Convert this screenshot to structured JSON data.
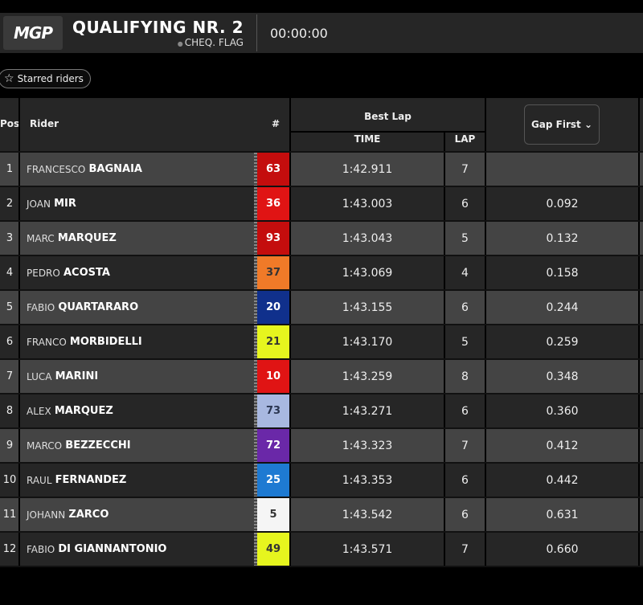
{
  "header": {
    "logo": "MGP",
    "title": "QUALIFYING NR. 2",
    "status": "CHEQ. FLAG",
    "clock": "00:00:00"
  },
  "filter": {
    "starred_label": "Starred riders",
    "icon": "star-outline-icon"
  },
  "columns": {
    "pos": "Pos",
    "rider": "Rider",
    "number": "#",
    "best_lap": "Best Lap",
    "time": "TIME",
    "lap": "LAP",
    "gap": "Gap First"
  },
  "rows": [
    {
      "pos": "1",
      "first": "FRANCESCO",
      "last": "BAGNAIA",
      "number": "63",
      "color": "#c40d0d",
      "text_color": "#ffffff",
      "time": "1:42.911",
      "lap": "7",
      "gap": ""
    },
    {
      "pos": "2",
      "first": "JOAN",
      "last": "MIR",
      "number": "36",
      "color": "#e01414",
      "text_color": "#ffffff",
      "time": "1:43.003",
      "lap": "6",
      "gap": "0.092"
    },
    {
      "pos": "3",
      "first": "MARC",
      "last": "MARQUEZ",
      "number": "93",
      "color": "#c40d0d",
      "text_color": "#ffffff",
      "time": "1:43.043",
      "lap": "5",
      "gap": "0.132"
    },
    {
      "pos": "4",
      "first": "PEDRO",
      "last": "ACOSTA",
      "number": "37",
      "color": "#f07a28",
      "text_color": "#333333",
      "time": "1:43.069",
      "lap": "4",
      "gap": "0.158"
    },
    {
      "pos": "5",
      "first": "FABIO",
      "last": "QUARTARARO",
      "number": "20",
      "color": "#10308c",
      "text_color": "#ffffff",
      "time": "1:43.155",
      "lap": "6",
      "gap": "0.244"
    },
    {
      "pos": "6",
      "first": "FRANCO",
      "last": "MORBIDELLI",
      "number": "21",
      "color": "#e6f51e",
      "text_color": "#333333",
      "time": "1:43.170",
      "lap": "5",
      "gap": "0.259"
    },
    {
      "pos": "7",
      "first": "LUCA",
      "last": "MARINI",
      "number": "10",
      "color": "#e01414",
      "text_color": "#ffffff",
      "time": "1:43.259",
      "lap": "8",
      "gap": "0.348"
    },
    {
      "pos": "8",
      "first": "ALEX",
      "last": "MARQUEZ",
      "number": "73",
      "color": "#a8b8e0",
      "text_color": "#2a3550",
      "time": "1:43.271",
      "lap": "6",
      "gap": "0.360"
    },
    {
      "pos": "9",
      "first": "MARCO",
      "last": "BEZZECCHI",
      "number": "72",
      "color": "#6a28a8",
      "text_color": "#ffffff",
      "time": "1:43.323",
      "lap": "7",
      "gap": "0.412"
    },
    {
      "pos": "10",
      "first": "RAUL",
      "last": "FERNANDEZ",
      "number": "25",
      "color": "#1e7ad2",
      "text_color": "#ffffff",
      "time": "1:43.353",
      "lap": "6",
      "gap": "0.442"
    },
    {
      "pos": "11",
      "first": "JOHANN",
      "last": "ZARCO",
      "number": "5",
      "color": "#f5f5f5",
      "text_color": "#333333",
      "time": "1:43.542",
      "lap": "6",
      "gap": "0.631"
    },
    {
      "pos": "12",
      "first": "FABIO",
      "last": "DI GIANNANTONIO",
      "number": "49",
      "color": "#e6f51e",
      "text_color": "#333333",
      "time": "1:43.571",
      "lap": "7",
      "gap": "0.660"
    }
  ]
}
